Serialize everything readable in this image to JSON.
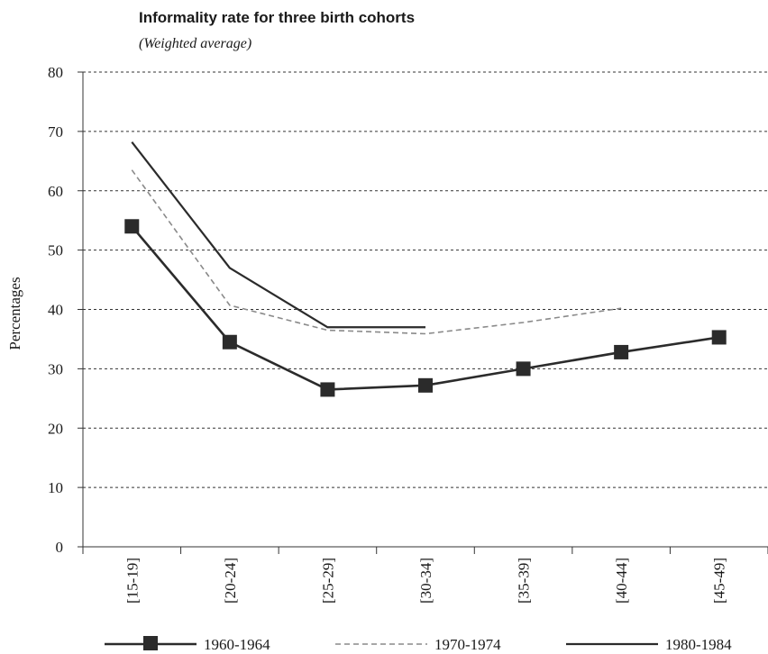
{
  "chart_data": {
    "type": "line",
    "title": "Informality rate for three birth cohorts",
    "subtitle": "(Weighted average)",
    "xlabel": "",
    "ylabel": "Percentages",
    "ylim": [
      0,
      80
    ],
    "yticks": [
      0,
      10,
      20,
      30,
      40,
      50,
      60,
      70,
      80
    ],
    "grid": "horizontal dotted",
    "legend_position": "bottom",
    "categories": [
      "[15-19]",
      "[20-24]",
      "[25-29]",
      "[30-34]",
      "[35-39]",
      "[40-44]",
      "[45-49]"
    ],
    "series": [
      {
        "name": "1960-1964",
        "style": "solid-marker",
        "color": "#2b2b2b",
        "values": [
          54,
          34.5,
          26.5,
          27.2,
          30,
          32.8,
          35.3
        ]
      },
      {
        "name": "1970-1974",
        "style": "dashed",
        "color": "#8a8a8a",
        "values": [
          63.5,
          40.7,
          36.5,
          35.9,
          37.8,
          40.2,
          null
        ]
      },
      {
        "name": "1980-1984",
        "style": "solid",
        "color": "#2b2b2b",
        "values": [
          68.2,
          47,
          37,
          37,
          null,
          null,
          null
        ]
      }
    ]
  }
}
